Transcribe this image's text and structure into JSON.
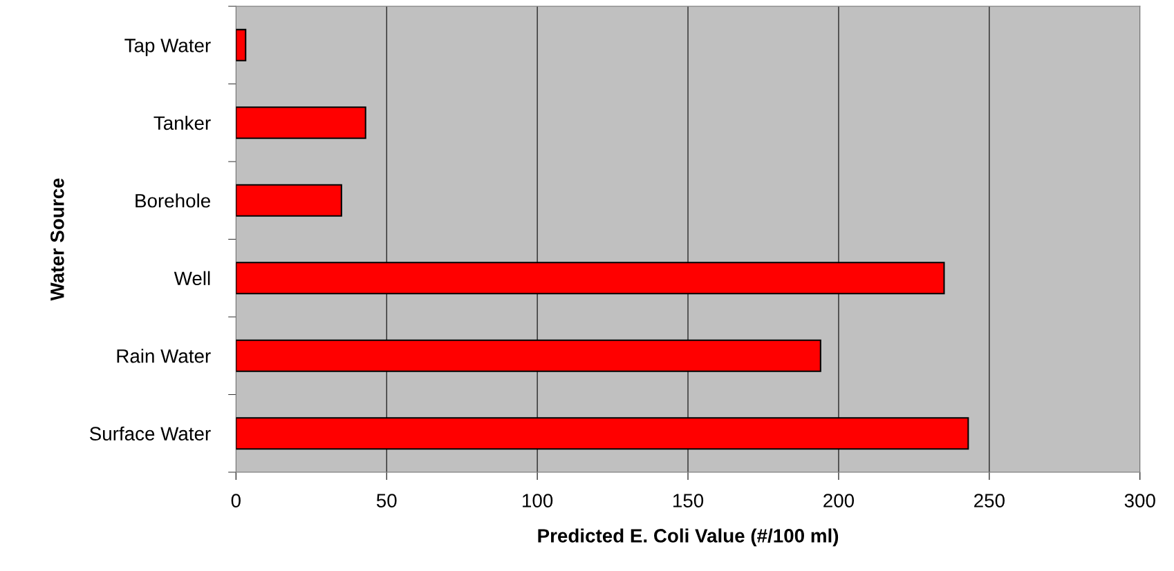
{
  "chart_data": {
    "type": "bar",
    "orientation": "horizontal",
    "xlabel": "Predicted E. Coli Value (#/100 ml)",
    "ylabel": "Water Source",
    "categories": [
      "Tap Water",
      "Tanker",
      "Borehole",
      "Well",
      "Rain Water",
      "Surface Water"
    ],
    "values": [
      3.2,
      43,
      35,
      235,
      194,
      243
    ],
    "color": "#ff0000",
    "xlim": [
      0,
      300
    ],
    "xticks": [
      0,
      50,
      100,
      150,
      200,
      250,
      300
    ],
    "grid": "x"
  }
}
